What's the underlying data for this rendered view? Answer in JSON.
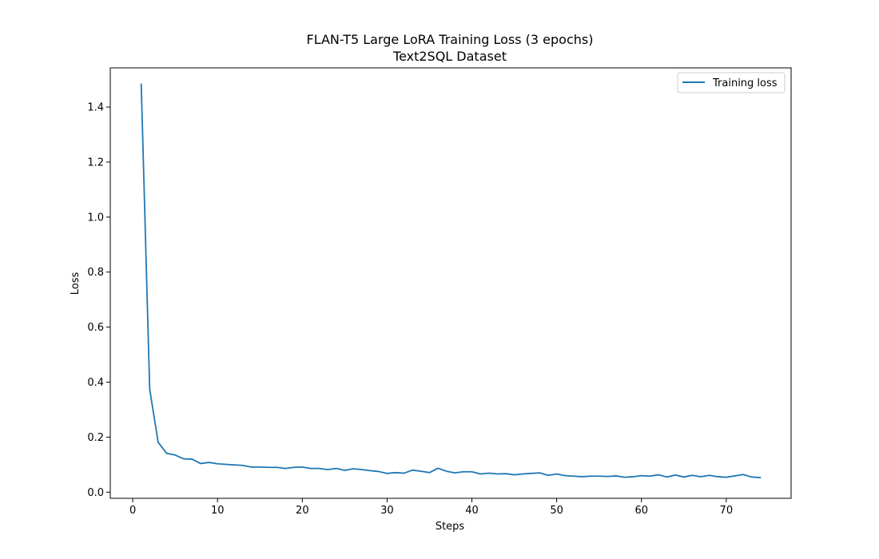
{
  "chart_data": {
    "type": "line",
    "title": "FLAN-T5 Large LoRA Training Loss (3 epochs)",
    "subtitle": "Text2SQL Dataset",
    "xlabel": "Steps",
    "ylabel": "Loss",
    "xlim": [
      -2.65,
      77.65
    ],
    "ylim": [
      -0.0225,
      1.5425
    ],
    "xticks": [
      0,
      10,
      20,
      30,
      40,
      50,
      60,
      70
    ],
    "yticks": [
      0.0,
      0.2,
      0.4,
      0.6,
      0.8,
      1.0,
      1.2,
      1.4
    ],
    "ytick_labels": [
      "0.0",
      "0.2",
      "0.4",
      "0.6",
      "0.8",
      "1.0",
      "1.2",
      "1.4"
    ],
    "grid": false,
    "legend_position": "top-right",
    "series": [
      {
        "name": "Training loss",
        "color": "#1f77b4",
        "x": [
          1,
          2,
          3,
          4,
          5,
          6,
          7,
          8,
          9,
          10,
          11,
          12,
          13,
          14,
          15,
          16,
          17,
          18,
          19,
          20,
          21,
          22,
          23,
          24,
          25,
          26,
          27,
          28,
          29,
          30,
          31,
          32,
          33,
          34,
          35,
          36,
          37,
          38,
          39,
          40,
          41,
          42,
          43,
          44,
          45,
          46,
          47,
          48,
          49,
          50,
          51,
          52,
          53,
          54,
          55,
          56,
          57,
          58,
          59,
          60,
          61,
          62,
          63,
          64,
          65,
          66,
          67,
          68,
          69,
          70,
          71,
          72,
          73,
          74
        ],
        "y": [
          1.483,
          0.374,
          0.181,
          0.141,
          0.135,
          0.121,
          0.12,
          0.104,
          0.108,
          0.103,
          0.101,
          0.099,
          0.097,
          0.091,
          0.091,
          0.09,
          0.09,
          0.086,
          0.09,
          0.091,
          0.086,
          0.086,
          0.082,
          0.086,
          0.079,
          0.085,
          0.082,
          0.078,
          0.075,
          0.068,
          0.071,
          0.069,
          0.08,
          0.076,
          0.071,
          0.087,
          0.076,
          0.07,
          0.074,
          0.074,
          0.066,
          0.069,
          0.066,
          0.067,
          0.063,
          0.066,
          0.068,
          0.07,
          0.061,
          0.066,
          0.06,
          0.058,
          0.056,
          0.058,
          0.058,
          0.057,
          0.059,
          0.054,
          0.056,
          0.06,
          0.058,
          0.063,
          0.055,
          0.062,
          0.055,
          0.061,
          0.056,
          0.061,
          0.056,
          0.054,
          0.059,
          0.064,
          0.055,
          0.053
        ]
      }
    ]
  }
}
